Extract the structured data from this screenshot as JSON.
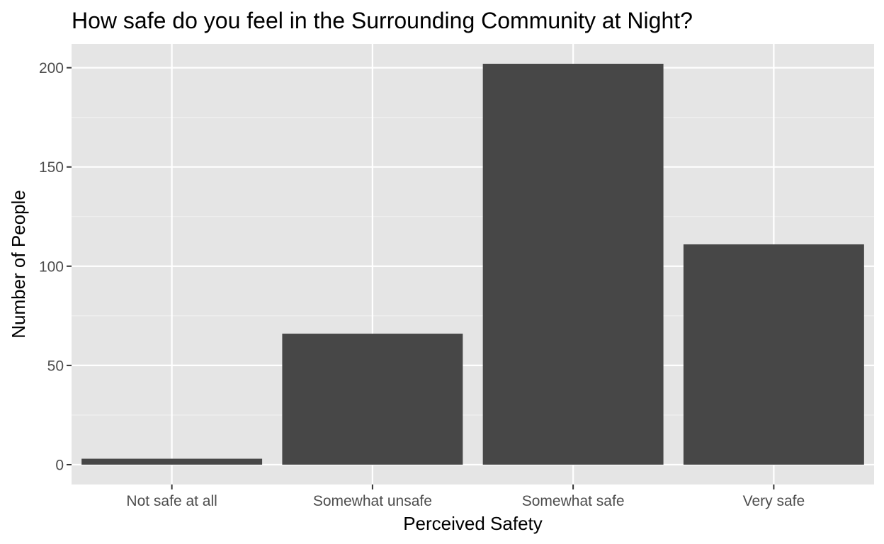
{
  "chart_data": {
    "type": "bar",
    "title": "How safe do you feel in the Surrounding Community at Night?",
    "xlabel": "Perceived Safety",
    "ylabel": "Number of People",
    "categories": [
      "Not safe at all",
      "Somewhat unsafe",
      "Somewhat safe",
      "Very safe"
    ],
    "values": [
      3,
      66,
      202,
      111
    ],
    "ylim": [
      -10,
      212
    ],
    "yticks": [
      0,
      50,
      100,
      150,
      200
    ],
    "ytick_labels": [
      "0",
      "50",
      "100",
      "150",
      "200"
    ],
    "grid": true,
    "legend": "none",
    "colors": {
      "bar": "#474747",
      "panel_background": "#e5e5e5",
      "grid_major": "#ffffff",
      "grid_minor": "#f2f2f2",
      "tick_text": "#4d4d4d",
      "axis_tick": "#333333"
    }
  }
}
